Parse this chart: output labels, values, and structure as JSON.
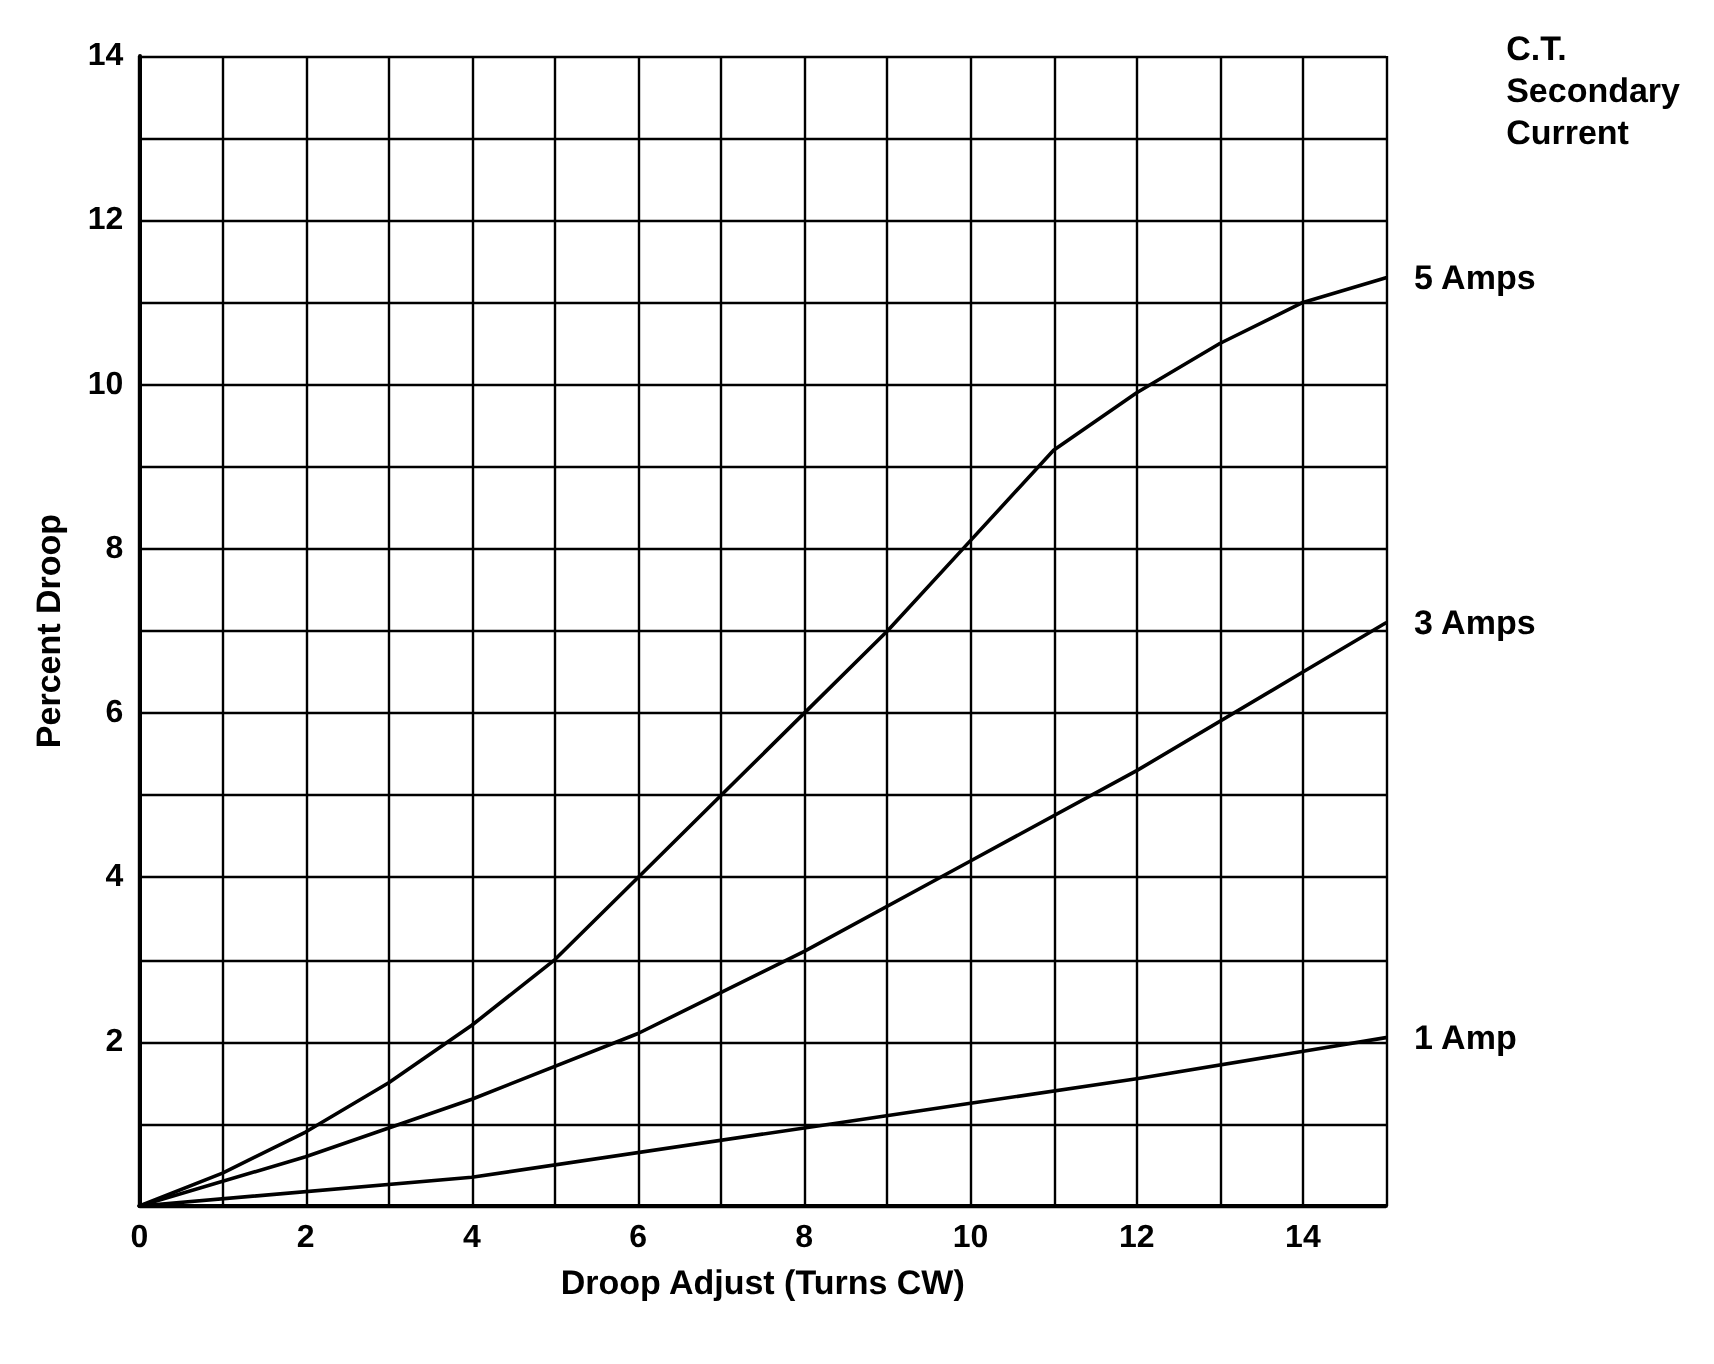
{
  "chart_data": {
    "type": "line",
    "xlabel": "Droop Adjust (Turns CW)",
    "ylabel": "Percent Droop",
    "legend_title": "C.T. Secondary Current",
    "xlim": [
      0,
      15
    ],
    "ylim": [
      0,
      14
    ],
    "xticks": [
      0,
      {
        "value": 1,
        "label": null
      },
      2,
      {
        "value": 3,
        "label": null
      },
      4,
      {
        "value": 5,
        "label": null
      },
      6,
      {
        "value": 7,
        "label": null
      },
      8,
      {
        "value": 9,
        "label": null
      },
      10,
      {
        "value": 11,
        "label": null
      },
      12,
      {
        "value": 13,
        "label": null
      },
      14,
      {
        "value": 15,
        "label": null
      }
    ],
    "yticks": [
      {
        "value": 0,
        "label": null
      },
      {
        "value": 1,
        "label": null
      },
      2,
      {
        "value": 3,
        "label": null
      },
      4,
      {
        "value": 5,
        "label": null
      },
      6,
      {
        "value": 7,
        "label": null
      },
      8,
      {
        "value": 9,
        "label": null
      },
      10,
      {
        "value": 11,
        "label": null
      },
      12,
      {
        "value": 13,
        "label": null
      },
      14
    ],
    "grid": true,
    "legend": false,
    "marker": "none",
    "line_style": "solid",
    "series": [
      {
        "name": "5 Amps",
        "color": "#000000",
        "x": [
          0,
          1,
          2,
          3,
          4,
          5,
          6,
          7,
          8,
          9,
          10,
          11,
          12,
          13,
          14,
          15
        ],
        "values": [
          0,
          0.4,
          0.9,
          1.5,
          2.2,
          3,
          4,
          5,
          6,
          7,
          8.1,
          9.2,
          9.9,
          10.5,
          11,
          11.3
        ]
      },
      {
        "name": "3 Amps",
        "color": "#000000",
        "x": [
          0,
          2,
          4,
          6,
          8,
          10,
          12,
          14,
          15
        ],
        "values": [
          0,
          0.6,
          1.3,
          2.1,
          3.1,
          4.2,
          5.3,
          6.5,
          7.1
        ]
      },
      {
        "name": "1 Amp",
        "color": "#000000",
        "x": [
          0,
          4,
          8,
          10,
          12,
          15
        ],
        "values": [
          0,
          0.35,
          0.95,
          1.25,
          1.55,
          2.05
        ]
      }
    ]
  }
}
